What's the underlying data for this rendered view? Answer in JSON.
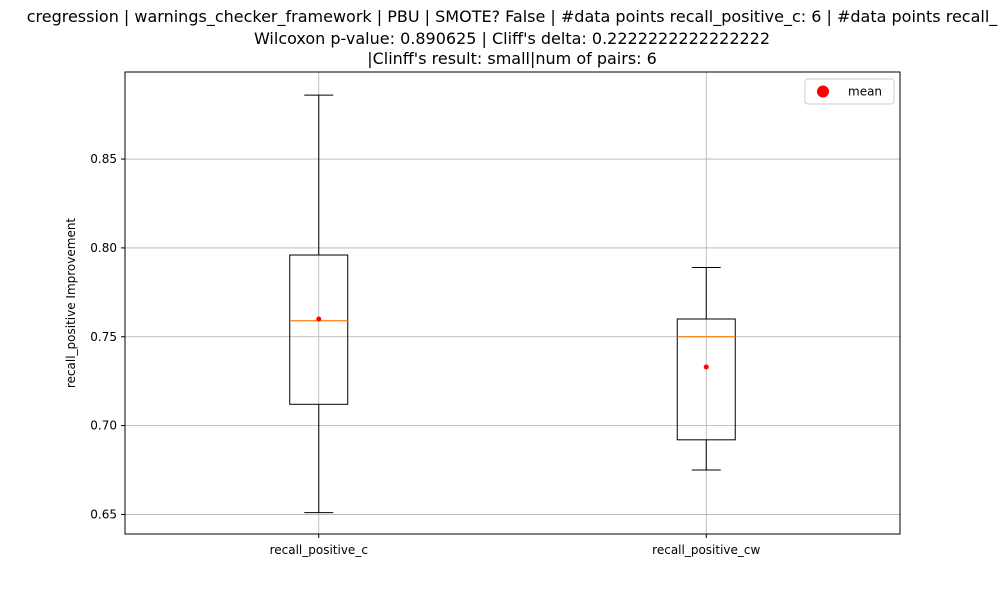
{
  "chart_data": {
    "type": "box",
    "title_lines": [
      "cregression | warnings_checker_framework | PBU | SMOTE? False | #data points recall_positive_c: 6 | #data points recall_",
      "Wilcoxon p-value: 0.890625 | Cliff's delta: 0.2222222222222222",
      "|Clinff's result: small|num of pairs: 6"
    ],
    "xlabel": "",
    "ylabel": "recall_positive Improvement",
    "ylim": [
      0.639,
      0.899
    ],
    "yticks": [
      "0.65",
      "0.70",
      "0.75",
      "0.80",
      "0.85"
    ],
    "grid": true,
    "legend": {
      "position": "top-right",
      "entries": [
        "mean"
      ]
    },
    "categories": [
      "recall_positive_c",
      "recall_positive_cw"
    ],
    "boxes": [
      {
        "name": "recall_positive_c",
        "whisker_low": 0.651,
        "q1": 0.712,
        "median": 0.759,
        "q3": 0.796,
        "whisker_high": 0.886,
        "mean": 0.76
      },
      {
        "name": "recall_positive_cw",
        "whisker_low": 0.675,
        "q1": 0.692,
        "median": 0.75,
        "q3": 0.76,
        "whisker_high": 0.789,
        "mean": 0.733
      }
    ],
    "colors": {
      "box": "#000000",
      "median": "#ff7f0e",
      "mean": "#ff0000",
      "grid": "#b0b0b0"
    }
  }
}
